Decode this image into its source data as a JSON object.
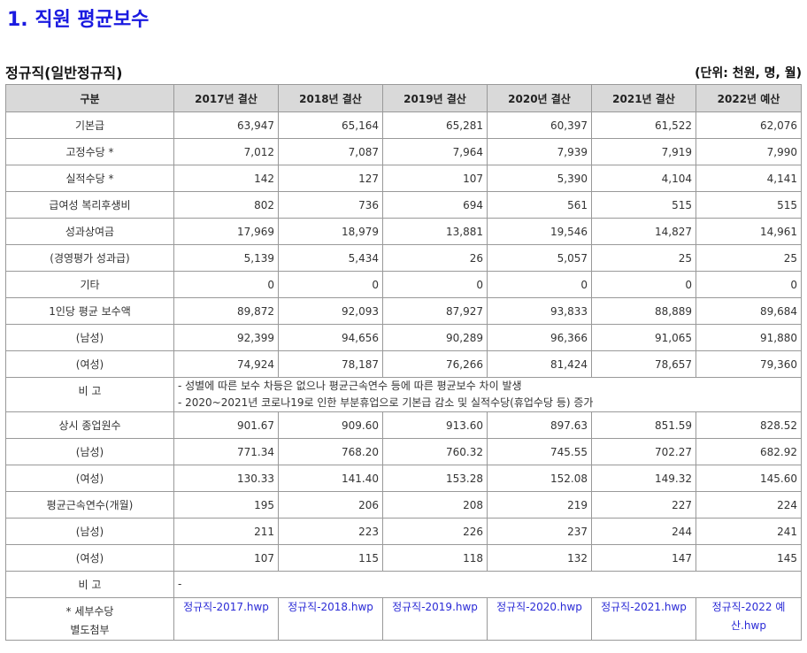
{
  "title": "1. 직원 평균보수",
  "subtitle": "정규직(일반정규직)",
  "unit": "(단위: 천원, 명, 월)",
  "columns": [
    "구분",
    "2017년 결산",
    "2018년 결산",
    "2019년 결산",
    "2020년 결산",
    "2021년 결산",
    "2022년 예산"
  ],
  "rows1": [
    {
      "label": "기본급",
      "values": [
        "63,947",
        "65,164",
        "65,281",
        "60,397",
        "61,522",
        "62,076"
      ]
    },
    {
      "label": "고정수당 *",
      "values": [
        "7,012",
        "7,087",
        "7,964",
        "7,939",
        "7,919",
        "7,990"
      ]
    },
    {
      "label": "실적수당 *",
      "values": [
        "142",
        "127",
        "107",
        "5,390",
        "4,104",
        "4,141"
      ]
    },
    {
      "label": "급여성 복리후생비",
      "values": [
        "802",
        "736",
        "694",
        "561",
        "515",
        "515"
      ]
    },
    {
      "label": "성과상여금",
      "values": [
        "17,969",
        "18,979",
        "13,881",
        "19,546",
        "14,827",
        "14,961"
      ]
    },
    {
      "label": "(경영평가 성과급)",
      "values": [
        "5,139",
        "5,434",
        "26",
        "5,057",
        "25",
        "25"
      ]
    },
    {
      "label": "기타",
      "values": [
        "0",
        "0",
        "0",
        "0",
        "0",
        "0"
      ]
    },
    {
      "label": "1인당 평균 보수액",
      "values": [
        "89,872",
        "92,093",
        "87,927",
        "93,833",
        "88,889",
        "89,684"
      ]
    },
    {
      "label": "(남성)",
      "values": [
        "92,399",
        "94,656",
        "90,289",
        "96,366",
        "91,065",
        "91,880"
      ]
    },
    {
      "label": "(여성)",
      "values": [
        "74,924",
        "78,187",
        "76,266",
        "81,424",
        "78,657",
        "79,360"
      ]
    }
  ],
  "remark1": {
    "label": "비 고",
    "line1": "- 성별에 따른 보수 차등은 없으나 평균근속연수 등에 따른 평균보수 차이 발생",
    "line2": "- 2020~2021년 코로나19로 인한 부분휴업으로 기본급 감소 및 실적수당(휴업수당 등) 증가"
  },
  "rows2": [
    {
      "label": "상시 종업원수",
      "values": [
        "901.67",
        "909.60",
        "913.60",
        "897.63",
        "851.59",
        "828.52"
      ]
    },
    {
      "label": "(남성)",
      "values": [
        "771.34",
        "768.20",
        "760.32",
        "745.55",
        "702.27",
        "682.92"
      ]
    },
    {
      "label": "(여성)",
      "values": [
        "130.33",
        "141.40",
        "153.28",
        "152.08",
        "149.32",
        "145.60"
      ]
    },
    {
      "label": "평균근속연수(개월)",
      "values": [
        "195",
        "206",
        "208",
        "219",
        "227",
        "224"
      ]
    },
    {
      "label": "(남성)",
      "values": [
        "211",
        "223",
        "226",
        "237",
        "244",
        "241"
      ]
    },
    {
      "label": "(여성)",
      "values": [
        "107",
        "115",
        "118",
        "132",
        "147",
        "145"
      ]
    }
  ],
  "remark2": {
    "label": "비 고",
    "text": "-"
  },
  "attachments": {
    "label_line1": "* 세부수당",
    "label_line2": "별도첨부",
    "files": [
      "정규직-2017.hwp",
      "정규직-2018.hwp",
      "정규직-2019.hwp",
      "정규직-2020.hwp",
      "정규직-2021.hwp",
      "정규직-2022 예산.hwp"
    ]
  },
  "colors": {
    "title": "#1a1ae0",
    "link": "#2a2ad6",
    "header_bg": "#d9d9d9"
  }
}
